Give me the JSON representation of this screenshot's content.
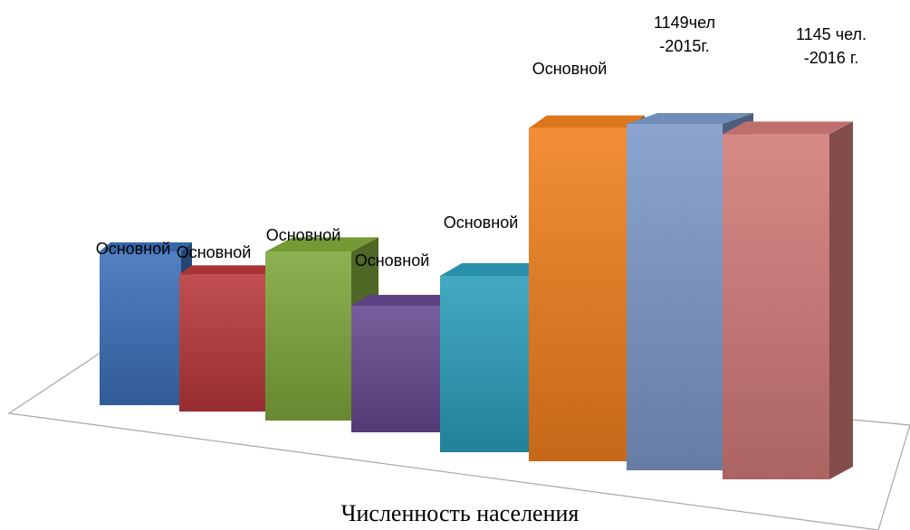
{
  "chart_data": {
    "type": "bar",
    "title": "",
    "xlabel": "Численность населения",
    "ylabel": "",
    "categories": [
      "",
      "",
      "",
      "",
      "",
      "",
      "",
      ""
    ],
    "values": [
      510,
      455,
      560,
      420,
      585,
      1105,
      1149,
      1145
    ],
    "ylim": [
      0,
      1200
    ],
    "grid": false,
    "legend": "none",
    "data_labels": [
      [
        "Основной"
      ],
      [
        "Основной"
      ],
      [
        "Основной"
      ],
      [
        "Основной"
      ],
      [
        "Основной"
      ],
      [
        "Основной"
      ],
      [
        "1149чел",
        "-2015г."
      ],
      [
        "1145 чел.",
        "-2016 г."
      ]
    ],
    "colors": [
      "#3a6fb8",
      "#b8373a",
      "#7ea63a",
      "#64488f",
      "#2b9dba",
      "#f07f1c",
      "#7b98c8",
      "#d07a78"
    ]
  }
}
